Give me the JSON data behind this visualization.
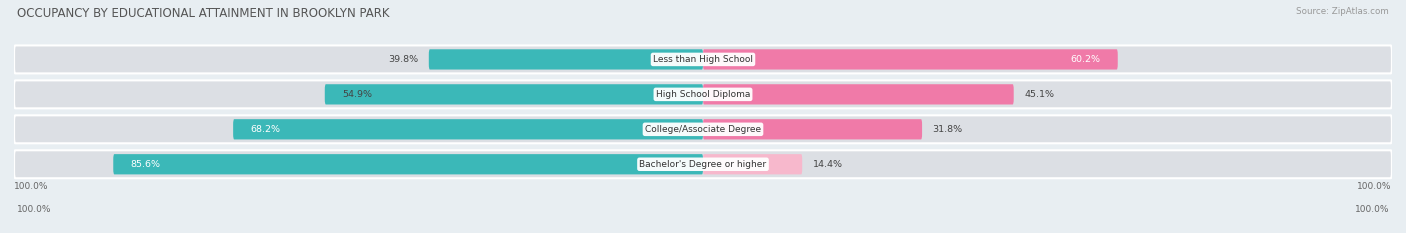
{
  "title": "OCCUPANCY BY EDUCATIONAL ATTAINMENT IN BROOKLYN PARK",
  "source": "Source: ZipAtlas.com",
  "categories": [
    "Less than High School",
    "High School Diploma",
    "College/Associate Degree",
    "Bachelor's Degree or higher"
  ],
  "owner_pct": [
    39.8,
    54.9,
    68.2,
    85.6
  ],
  "renter_pct": [
    60.2,
    45.1,
    31.8,
    14.4
  ],
  "owner_color": "#3BB8B8",
  "renter_color": "#F07AA8",
  "renter_color_light": "#F7B8CC",
  "bg_color": "#E8EEF2",
  "bar_bg_color": "#DCDFE4",
  "title_fontsize": 8.5,
  "label_fontsize": 6.8,
  "bar_height": 0.58,
  "axis_label_left": "100.0%",
  "axis_label_right": "100.0%",
  "total_width": 100
}
